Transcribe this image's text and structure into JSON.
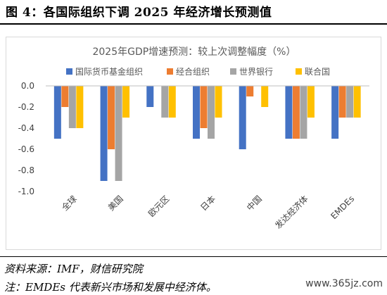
{
  "figure": {
    "title": "图 4：各国际组织下调 2025 年经济增长预测值",
    "source": "资料来源：IMF，财信研究院",
    "note": "注：EMDEs 代表新兴市场和发展中经济体。",
    "watermark": "www.365jz.com"
  },
  "chart_data": {
    "type": "bar",
    "title": "2025年GDP增速预测：较上次调整幅度（%）",
    "xlabel": "",
    "ylabel": "",
    "categories": [
      "全球",
      "美国",
      "欧元区",
      "日本",
      "中国",
      "发达经济体",
      "EMDEs"
    ],
    "series": [
      {
        "name": "国际货币基金组织",
        "color": "#4472C4",
        "values": [
          -0.5,
          -0.9,
          -0.2,
          -0.5,
          -0.6,
          -0.5,
          -0.5
        ]
      },
      {
        "name": "经合组织",
        "color": "#ED7D31",
        "values": [
          -0.2,
          -0.6,
          null,
          -0.4,
          -0.1,
          -0.5,
          -0.3
        ]
      },
      {
        "name": "世界银行",
        "color": "#A5A5A5",
        "values": [
          -0.4,
          -0.9,
          -0.3,
          -0.5,
          null,
          -0.5,
          -0.3
        ]
      },
      {
        "name": "联合国",
        "color": "#FFC000",
        "values": [
          -0.4,
          -0.3,
          -0.3,
          -0.3,
          -0.2,
          -0.3,
          -0.3
        ]
      }
    ],
    "ylim": [
      -1.0,
      0.0
    ],
    "yticks": [
      "0.0",
      "-0.2",
      "-0.4",
      "-0.6",
      "-0.8",
      "-1.0"
    ],
    "legend_position": "top",
    "grid": false
  }
}
